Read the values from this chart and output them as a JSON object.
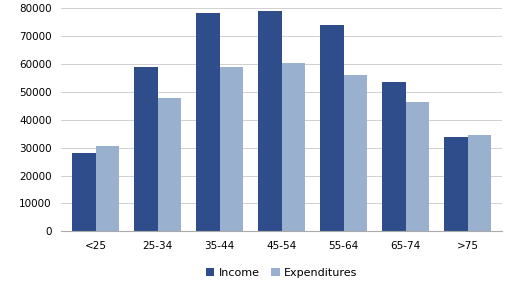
{
  "categories": [
    "<25",
    "25-34",
    "35-44",
    "45-54",
    "55-64",
    "65-74",
    ">75"
  ],
  "income": [
    28000,
    59000,
    78500,
    79000,
    74000,
    53500,
    34000
  ],
  "expenditures": [
    30500,
    48000,
    59000,
    60500,
    56000,
    46500,
    34500
  ],
  "income_color": "#2E4D8A",
  "expenditure_color": "#9AB0CF",
  "ylim": [
    0,
    80000
  ],
  "yticks": [
    0,
    10000,
    20000,
    30000,
    40000,
    50000,
    60000,
    70000,
    80000
  ],
  "legend_labels": [
    "Income",
    "Expenditures"
  ],
  "bar_width": 0.38,
  "background_color": "#ffffff",
  "grid_color": "#d0d0d0"
}
